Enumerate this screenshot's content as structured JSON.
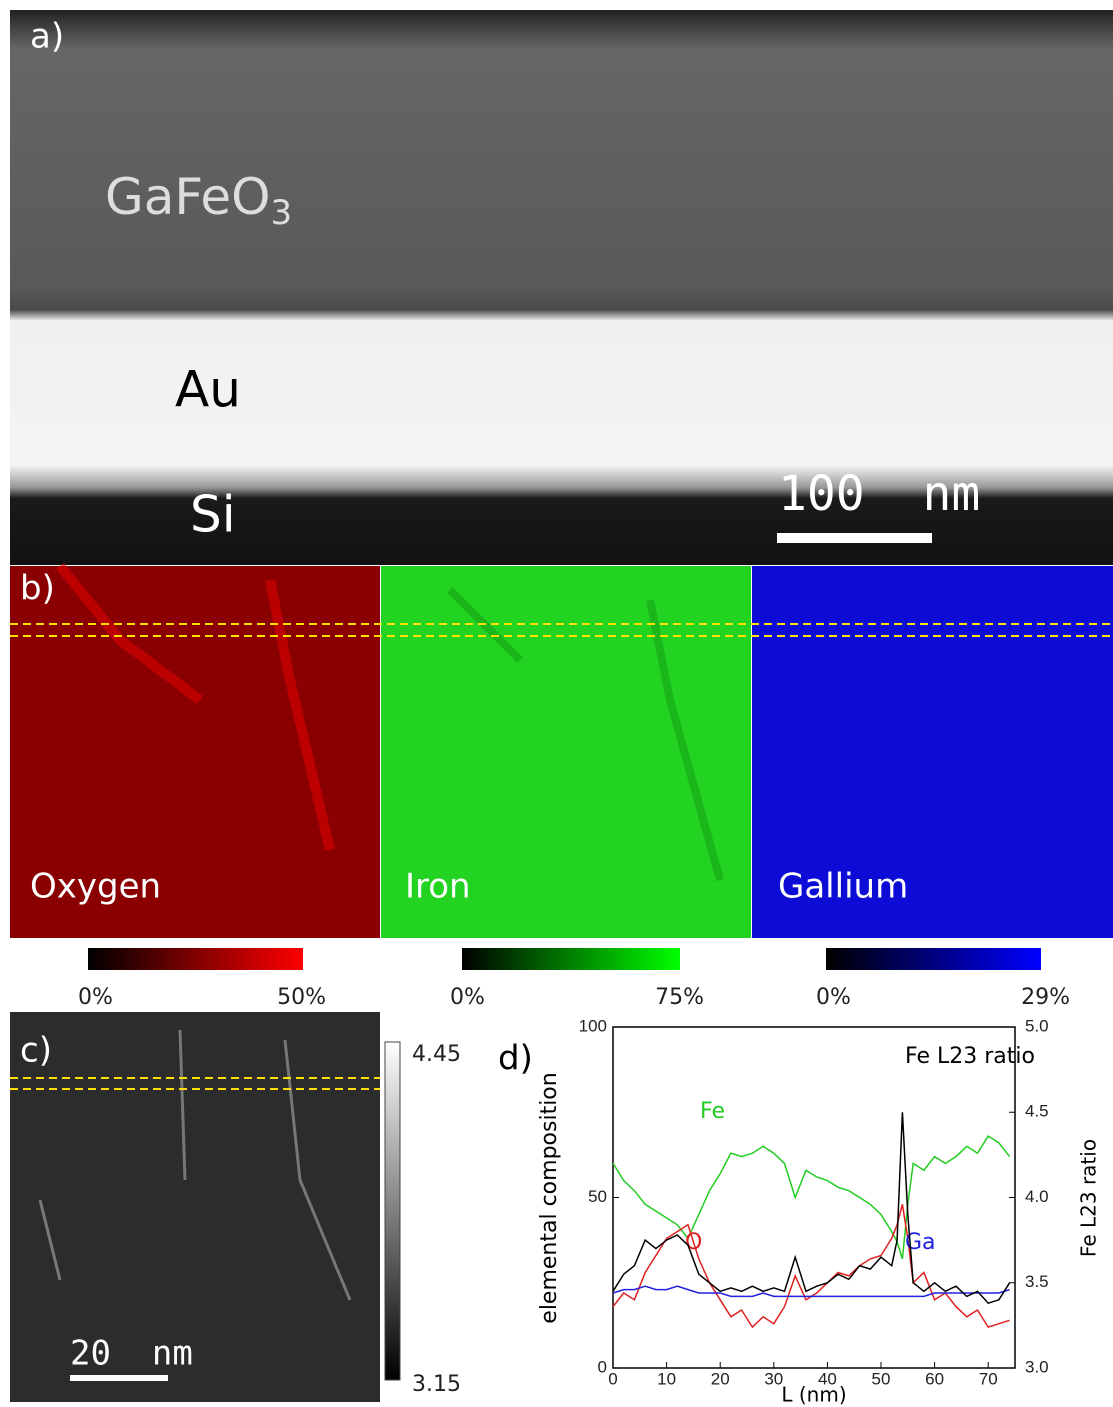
{
  "panel_a": {
    "label": "a)",
    "layers": [
      {
        "text": "GaFeO",
        "sub": "3"
      },
      "Au",
      "Si"
    ],
    "scale_bar": "100  nm"
  },
  "panel_b": {
    "label": "b)",
    "maps": [
      {
        "name": "Oxygen",
        "min": "0%",
        "max": "50%"
      },
      {
        "name": "Iron",
        "min": "0%",
        "max": "75%"
      },
      {
        "name": "Gallium",
        "min": "0%",
        "max": "29%"
      }
    ]
  },
  "panel_c": {
    "label": "c)",
    "colorbar_max": 4.45,
    "colorbar_min": 3.15,
    "scale_bar": "20  nm"
  },
  "chart_data": {
    "type": "line",
    "panel_label": "d)",
    "xlabel": "L (nm)",
    "ylabel": "elemental composition",
    "y2label": "Fe L23 ratio",
    "x": [
      0,
      2,
      4,
      6,
      8,
      10,
      12,
      14,
      16,
      18,
      20,
      22,
      24,
      26,
      28,
      30,
      32,
      34,
      36,
      38,
      40,
      42,
      44,
      46,
      48,
      50,
      52,
      53,
      54,
      55,
      56,
      58,
      60,
      62,
      64,
      66,
      68,
      70,
      72,
      74
    ],
    "xlim": [
      0,
      75
    ],
    "xticks": [
      0,
      10,
      20,
      30,
      40,
      50,
      60,
      70
    ],
    "ylim": [
      0,
      100
    ],
    "yticks": [
      0,
      50,
      100
    ],
    "y2lim": [
      3,
      5
    ],
    "y2ticks": [
      {
        "value": 3,
        "label": "3.0"
      },
      3.5,
      {
        "value": 4,
        "label": "4.0"
      },
      4.5,
      {
        "value": 5,
        "label": "5.0"
      }
    ],
    "series": [
      {
        "name": "Fe",
        "color": "#22cc22",
        "values": [
          60,
          55,
          52,
          48,
          46,
          44,
          42,
          38,
          45,
          52,
          57,
          63,
          62,
          63,
          65,
          63,
          60,
          50,
          58,
          56,
          55,
          53,
          52,
          50,
          48,
          45,
          40,
          37,
          32,
          48,
          60,
          58,
          62,
          60,
          62,
          65,
          63,
          68,
          66,
          62
        ]
      },
      {
        "name": "O",
        "color": "#e02020",
        "values": [
          18,
          22,
          20,
          28,
          33,
          38,
          40,
          42,
          32,
          25,
          20,
          15,
          17,
          12,
          15,
          13,
          18,
          27,
          20,
          22,
          25,
          28,
          27,
          30,
          32,
          33,
          38,
          42,
          48,
          38,
          25,
          28,
          20,
          22,
          18,
          15,
          17,
          12,
          13,
          14
        ]
      },
      {
        "name": "Ga",
        "color": "#2020e0",
        "values": [
          22,
          23,
          23,
          24,
          23,
          23,
          24,
          23,
          22,
          22,
          22,
          21,
          21,
          21,
          22,
          21,
          21,
          21,
          21,
          21,
          21,
          21,
          21,
          21,
          21,
          21,
          21,
          21,
          21,
          21,
          21,
          21,
          22,
          22,
          22,
          22,
          22,
          22,
          22,
          23
        ]
      },
      {
        "name": "Fe L23 ratio",
        "color": "#000000",
        "axis": "y2",
        "values": [
          3.45,
          3.55,
          3.6,
          3.75,
          3.7,
          3.75,
          3.78,
          3.72,
          3.55,
          3.5,
          3.45,
          3.47,
          3.45,
          3.48,
          3.45,
          3.47,
          3.45,
          3.65,
          3.45,
          3.48,
          3.5,
          3.55,
          3.52,
          3.6,
          3.58,
          3.65,
          3.6,
          3.75,
          4.5,
          3.9,
          3.5,
          3.45,
          3.5,
          3.45,
          3.48,
          3.42,
          3.45,
          3.38,
          3.4,
          3.5
        ]
      }
    ]
  }
}
